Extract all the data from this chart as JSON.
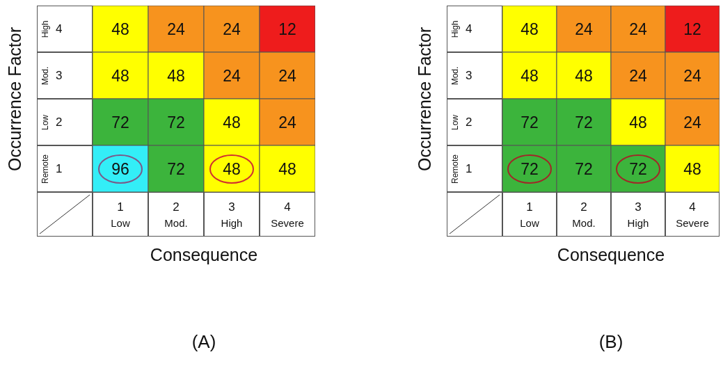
{
  "chart_data": [
    {
      "type": "heatmap",
      "data_labels": true,
      "title": "(A)",
      "xlabel": "Consequence",
      "ylabel": "Occurrence Factor",
      "categories": [
        "1\nLow",
        "2\nMod.",
        "3\nHigh",
        "4\nSevere"
      ],
      "y_categories": [
        "High\n4",
        "Mod.\n3",
        "Low\n2",
        "Remote\n1"
      ],
      "cells": [
        [
          48,
          24,
          24,
          12
        ],
        [
          48,
          48,
          24,
          24
        ],
        [
          72,
          72,
          48,
          24
        ],
        [
          96,
          72,
          48,
          48
        ]
      ],
      "colors": [
        [
          "#ffff00",
          "#f7931e",
          "#f7931e",
          "#ee1c1c"
        ],
        [
          "#ffff00",
          "#ffff00",
          "#f7931e",
          "#f7931e"
        ],
        [
          "#3cb43c",
          "#3cb43c",
          "#ffff00",
          "#f7931e"
        ],
        [
          "#33eef7",
          "#3cb43c",
          "#ffff00",
          "#ffff00"
        ]
      ]
    },
    {
      "type": "heatmap",
      "data_labels": true,
      "title": "(B)",
      "xlabel": "Consequence",
      "ylabel": "Occurrence Factor",
      "categories": [
        "1\nLow",
        "2\nMod.",
        "3\nHigh",
        "4\nSevere"
      ],
      "y_categories": [
        "High\n4",
        "Mod.\n3",
        "Low\n2",
        "Remote\n1"
      ],
      "cells": [
        [
          48,
          24,
          24,
          12
        ],
        [
          48,
          48,
          24,
          24
        ],
        [
          72,
          72,
          48,
          24
        ],
        [
          72,
          72,
          72,
          48
        ]
      ],
      "colors": [
        [
          "#ffff00",
          "#f7931e",
          "#f7931e",
          "#ee1c1c"
        ],
        [
          "#ffff00",
          "#ffff00",
          "#f7931e",
          "#f7931e"
        ],
        [
          "#3cb43c",
          "#3cb43c",
          "#ffff00",
          "#f7931e"
        ],
        [
          "#3cb43c",
          "#3cb43c",
          "#3cb43c",
          "#ffff00"
        ]
      ]
    }
  ]
}
